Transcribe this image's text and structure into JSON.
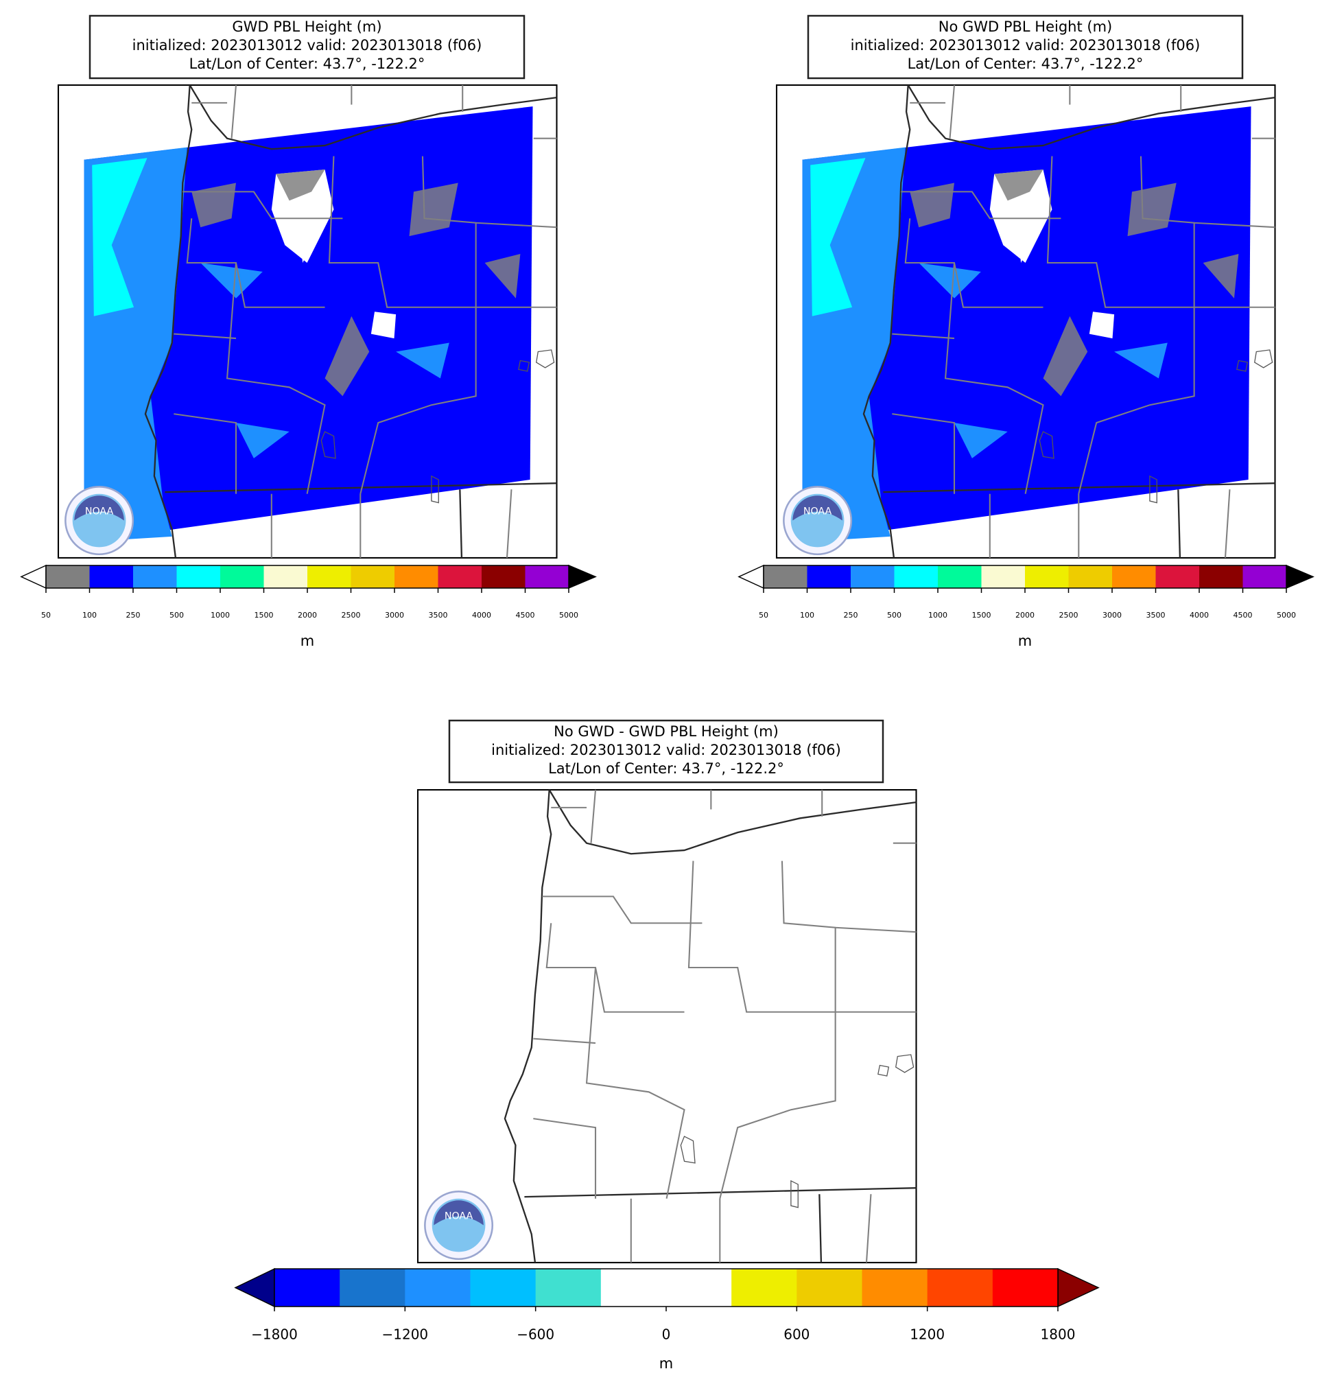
{
  "panels": [
    {
      "title": [
        "GWD PBL Height (m)",
        "initialized: 2023013012 valid: 2023013018 (f06)",
        "Lat/Lon of Center: 43.7°, -122.2°"
      ],
      "colorbar": {
        "ticks": [
          50,
          100,
          250,
          500,
          1000,
          1500,
          2000,
          2500,
          3000,
          3500,
          4000,
          4500,
          5000
        ],
        "colors": [
          "#808080",
          "#0000ff",
          "#1e90ff",
          "#00ffff",
          "#00fa9a",
          "#fafad2",
          "#eeee00",
          "#eecc00",
          "#ff8c00",
          "#dc143c",
          "#8b0000",
          "#9400d3"
        ],
        "under_color": "#ffffff",
        "over_color": "#000000",
        "label": "m"
      }
    },
    {
      "title": [
        "No GWD PBL Height (m)",
        "initialized: 2023013012 valid: 2023013018 (f06)",
        "Lat/Lon of Center: 43.7°, -122.2°"
      ],
      "colorbar": {
        "ticks": [
          50,
          100,
          250,
          500,
          1000,
          1500,
          2000,
          2500,
          3000,
          3500,
          4000,
          4500,
          5000
        ],
        "colors": [
          "#808080",
          "#0000ff",
          "#1e90ff",
          "#00ffff",
          "#00fa9a",
          "#fafad2",
          "#eeee00",
          "#eecc00",
          "#ff8c00",
          "#dc143c",
          "#8b0000",
          "#9400d3"
        ],
        "under_color": "#ffffff",
        "over_color": "#000000",
        "label": "m"
      }
    },
    {
      "title": [
        "No GWD - GWD PBL Height (m)",
        "initialized: 2023013012 valid: 2023013018 (f06)",
        "Lat/Lon of Center: 43.7°, -122.2°"
      ],
      "colorbar": {
        "levels": [
          -1800,
          -1500,
          -1200,
          -900,
          -600,
          -300,
          0,
          300,
          600,
          900,
          1200,
          1500,
          1800
        ],
        "ticks": [
          {
            "value": -1800,
            "label": "−1800"
          },
          {
            "value": -1200,
            "label": "−1200"
          },
          {
            "value": -600,
            "label": "−600"
          },
          0,
          600,
          1200,
          1800
        ],
        "colors": [
          "#0000ff",
          "#1874cd",
          "#1e90ff",
          "#00bfff",
          "#40e0d0",
          "#ffffff",
          "#ffffff",
          "#eeee00",
          "#eecc00",
          "#ff8c00",
          "#ff4500",
          "#ff0000"
        ],
        "under_color": "#00008b",
        "over_color": "#8b0000",
        "label": "m"
      }
    }
  ]
}
